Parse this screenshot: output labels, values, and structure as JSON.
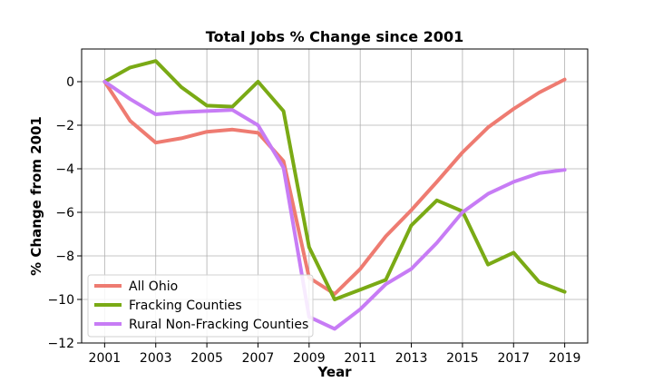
{
  "chart_data": {
    "type": "line",
    "title": "Total Jobs % Change since 2001",
    "xlabel": "Year",
    "ylabel": "% Change from 2001",
    "x": [
      2001,
      2002,
      2003,
      2004,
      2005,
      2006,
      2007,
      2008,
      2009,
      2010,
      2011,
      2012,
      2013,
      2014,
      2015,
      2016,
      2017,
      2018,
      2019
    ],
    "xticks": [
      "2001",
      "2003",
      "2005",
      "2007",
      "2009",
      "2011",
      "2013",
      "2015",
      "2017",
      "2019"
    ],
    "yticks": [
      "0",
      "−2",
      "−4",
      "−6",
      "−8",
      "−10",
      "−12"
    ],
    "xlim": [
      2000.1,
      2019.9
    ],
    "ylim": [
      -12,
      1.5
    ],
    "grid": true,
    "legend_position": "lower-left",
    "series": [
      {
        "name": "All Ohio",
        "color": "#ee7b71",
        "values": [
          0,
          -1.8,
          -2.8,
          -2.6,
          -2.3,
          -2.2,
          -2.35,
          -3.65,
          -9.0,
          -9.75,
          -8.6,
          -7.1,
          -5.9,
          -4.6,
          -3.25,
          -2.1,
          -1.25,
          -0.5,
          0.1
        ]
      },
      {
        "name": "Fracking Counties",
        "color": "#7aaa15",
        "values": [
          0,
          0.65,
          0.95,
          -0.25,
          -1.1,
          -1.15,
          0.0,
          -1.35,
          -7.6,
          -10.0,
          -9.55,
          -9.1,
          -6.6,
          -5.45,
          -5.95,
          -8.4,
          -7.85,
          -9.2,
          -9.65
        ]
      },
      {
        "name": "Rural Non-Fracking Counties",
        "color": "#c77cf5",
        "values": [
          0,
          -0.8,
          -1.5,
          -1.4,
          -1.35,
          -1.3,
          -2.0,
          -3.95,
          -10.8,
          -11.35,
          -10.45,
          -9.3,
          -8.6,
          -7.4,
          -6.0,
          -5.15,
          -4.6,
          -4.2,
          -4.05
        ]
      }
    ]
  }
}
